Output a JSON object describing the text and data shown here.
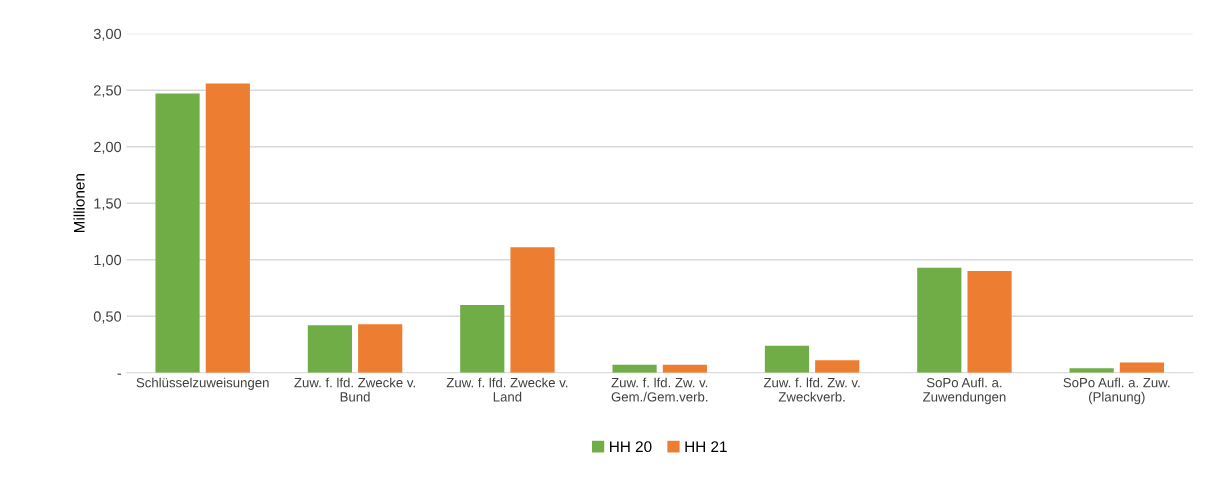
{
  "chart_data": {
    "type": "bar",
    "ylabel": "Millionen",
    "categories": [
      "Schlüsselzuweisungen",
      "Zuw. f. lfd. Zwecke v.\nBund",
      "Zuw. f. lfd. Zwecke v.\nLand",
      "Zuw. f. lfd. Zw. v.\nGem./Gem.verb.",
      "Zuw. f. lfd. Zw. v.\nZweckverb.",
      "SoPo Aufl. a.\nZuwendungen",
      "SoPo Aufl. a. Zuw.\n(Planung)"
    ],
    "series": [
      {
        "name": "HH 20",
        "color": "#70ad47",
        "values": [
          2.47,
          0.42,
          0.6,
          0.07,
          0.24,
          0.93,
          0.04
        ]
      },
      {
        "name": "HH 21",
        "color": "#ed7d31",
        "values": [
          2.56,
          0.43,
          1.11,
          0.07,
          0.11,
          0.9,
          0.09
        ]
      }
    ],
    "ylim": [
      0,
      3
    ],
    "yticks": [
      {
        "value": 0,
        "label": "-"
      },
      {
        "value": 0.5,
        "label": "0,50"
      },
      {
        "value": 1,
        "label": "1,00"
      },
      {
        "value": 1.5,
        "label": "1,50"
      },
      {
        "value": 2,
        "label": "2,00"
      },
      {
        "value": 2.5,
        "label": "2,50"
      },
      {
        "value": 3,
        "label": "3,00"
      }
    ],
    "grid": "y",
    "legend": "bottom"
  }
}
